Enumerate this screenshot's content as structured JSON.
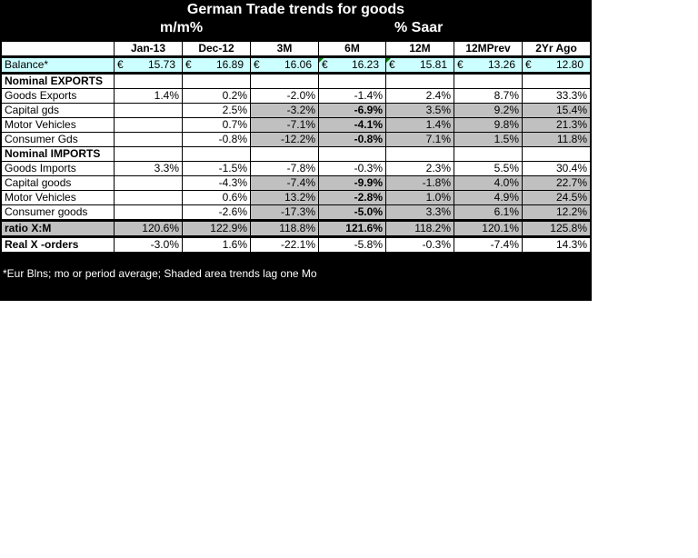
{
  "title": "German Trade trends for goods",
  "subtitle_left": "m/m%",
  "subtitle_right": "% Saar",
  "columns": [
    "Jan-13",
    "Dec-12",
    "3M",
    "6M",
    "12M",
    "12MPrev",
    "2Yr Ago"
  ],
  "currency_symbol": "€",
  "balance": {
    "label": "Balance*",
    "values": [
      "15.73",
      "16.89",
      "16.06",
      "16.23",
      "15.81",
      "13.26",
      "12.80"
    ]
  },
  "sections": {
    "exports": "Nominal EXPORTS",
    "imports": "Nominal IMPORTS"
  },
  "rows": [
    {
      "label": "Goods Exports",
      "values": [
        "1.4%",
        "0.2%",
        "-2.0%",
        "-1.4%",
        "2.4%",
        "8.7%",
        "33.3%"
      ]
    },
    {
      "label": "Capital gds",
      "values": [
        "",
        "2.5%",
        "-3.2%",
        "-6.9%",
        "3.5%",
        "9.2%",
        "15.4%"
      ]
    },
    {
      "label": "Motor Vehicles",
      "values": [
        "",
        "0.7%",
        "-7.1%",
        "-4.1%",
        "1.4%",
        "9.8%",
        "21.3%"
      ]
    },
    {
      "label": "Consumer Gds",
      "values": [
        "",
        "-0.8%",
        "-12.2%",
        "-0.8%",
        "7.1%",
        "1.5%",
        "11.8%"
      ]
    },
    {
      "label": "Goods Imports",
      "values": [
        "3.3%",
        "-1.5%",
        "-7.8%",
        "-0.3%",
        "2.3%",
        "5.5%",
        "30.4%"
      ]
    },
    {
      "label": "Capital goods",
      "values": [
        "",
        "-4.3%",
        "-7.4%",
        "-9.9%",
        "-1.8%",
        "4.0%",
        "22.7%"
      ]
    },
    {
      "label": "Motor Vehicles",
      "values": [
        "",
        "0.6%",
        "13.2%",
        "-2.8%",
        "1.0%",
        "4.9%",
        "24.5%"
      ]
    },
    {
      "label": "Consumer goods",
      "values": [
        "",
        "-2.6%",
        "-17.3%",
        "-5.0%",
        "3.3%",
        "6.1%",
        "12.2%"
      ]
    }
  ],
  "ratio": {
    "label": "ratio X:M",
    "values": [
      "120.6%",
      "122.9%",
      "118.8%",
      "121.6%",
      "118.2%",
      "120.1%",
      "125.8%"
    ]
  },
  "real_orders": {
    "label": "Real X -orders",
    "values": [
      "-3.0%",
      "1.6%",
      "-22.1%",
      "-5.8%",
      "-0.3%",
      "-7.4%",
      "14.3%"
    ]
  },
  "footnote": "*Eur Blns; mo or period average; Shaded area trends lag one Mo",
  "colors": {
    "shade": "#c0c0c0",
    "balance_bg": "#ccffff",
    "marker": "#008000"
  }
}
